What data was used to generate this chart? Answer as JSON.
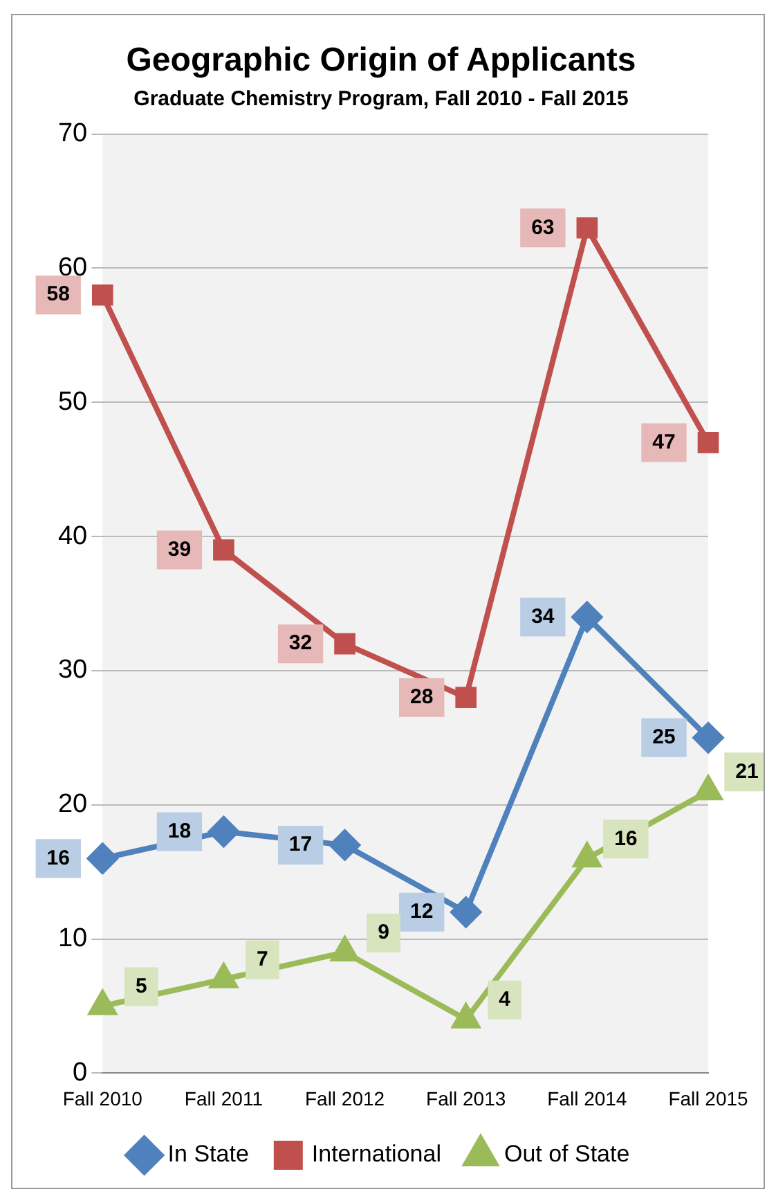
{
  "chart_data": {
    "type": "line",
    "title": "Geographic Origin of Applicants",
    "subtitle": "Graduate Chemistry Program, Fall 2010 - Fall 2015",
    "categories": [
      "Fall 2010",
      "Fall 2011",
      "Fall 2012",
      "Fall 2013",
      "Fall 2014",
      "Fall 2015"
    ],
    "series": [
      {
        "name": "In State",
        "color": "#4f81bd",
        "marker": "diamond",
        "values": [
          16,
          18,
          17,
          12,
          34,
          25
        ]
      },
      {
        "name": "International",
        "color": "#c0504d",
        "marker": "square",
        "values": [
          58,
          39,
          32,
          28,
          63,
          47
        ]
      },
      {
        "name": "Out of State",
        "color": "#9bbb59",
        "marker": "triangle",
        "values": [
          5,
          7,
          9,
          4,
          16,
          21
        ]
      }
    ],
    "ylim": [
      0,
      70
    ],
    "yticks": [
      0,
      10,
      20,
      30,
      40,
      50,
      60,
      70
    ],
    "grid": "y",
    "legend": "bottom",
    "data_labels": true
  }
}
